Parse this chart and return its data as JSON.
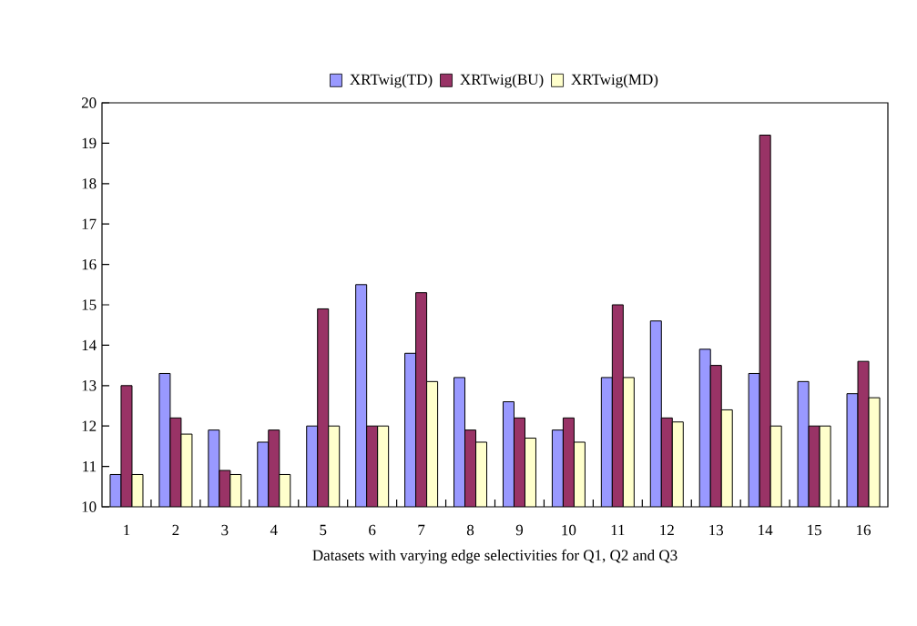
{
  "chart_data": {
    "type": "bar",
    "xlabel": "Datasets with varying edge selectivities for Q1, Q2 and Q3",
    "categories": [
      "1",
      "2",
      "3",
      "4",
      "5",
      "6",
      "7",
      "8",
      "9",
      "10",
      "11",
      "12",
      "13",
      "14",
      "15",
      "16"
    ],
    "series": [
      {
        "name": "XRTwig(TD)",
        "color": "#9999ff",
        "values": [
          10.8,
          13.3,
          11.9,
          11.6,
          12.0,
          15.5,
          13.8,
          13.2,
          12.6,
          11.9,
          13.2,
          14.6,
          13.9,
          13.3,
          13.1,
          12.8
        ]
      },
      {
        "name": "XRTwig(BU)",
        "color": "#993366",
        "values": [
          13.0,
          12.2,
          10.9,
          11.9,
          14.9,
          12.0,
          15.3,
          11.9,
          12.2,
          12.2,
          15.0,
          12.2,
          13.5,
          19.2,
          12.0,
          13.6
        ]
      },
      {
        "name": "XRTwig(MD)",
        "color": "#ffffcc",
        "values": [
          10.8,
          11.8,
          10.8,
          10.8,
          12.0,
          12.0,
          13.1,
          11.6,
          11.7,
          11.6,
          13.2,
          12.1,
          12.4,
          12.0,
          12.0,
          12.7
        ]
      }
    ],
    "ylim": [
      10,
      20
    ],
    "yticks": [
      10,
      11,
      12,
      13,
      14,
      15,
      16,
      17,
      18,
      19,
      20
    ],
    "grid": false,
    "legend": "top"
  }
}
